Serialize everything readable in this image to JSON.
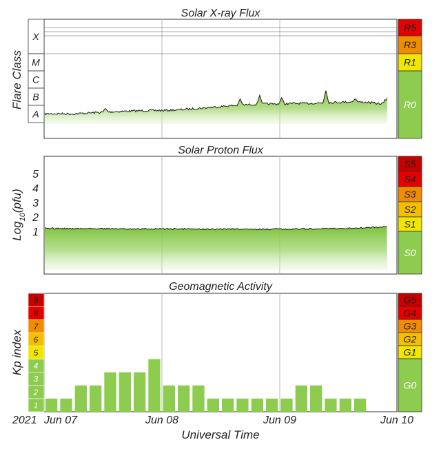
{
  "colors": {
    "green": "#8dcc4e",
    "green_light": "#d6efbe",
    "yellow": "#f2e600",
    "gold": "#f5bf00",
    "orange": "#f08c00",
    "red_orange": "#e64a00",
    "red": "#e60000",
    "dark_red": "#c80000",
    "grid": "#b8b8b8",
    "line": "#1a1a1a"
  },
  "chart_data": [
    {
      "type": "area",
      "title": "Solar X-ray Flux",
      "ylabel": "Flare Class",
      "y_scale": "log",
      "y_range_wm2": [
        1e-09,
        0.01
      ],
      "class_labels": [
        "X",
        "M",
        "C",
        "B",
        "A"
      ],
      "x_range": [
        "2021-06-07",
        "2021-06-10"
      ],
      "series": [
        {
          "points": [
            [
              "2021-06-07 00:00",
              3.2e-08
            ],
            [
              "2021-06-07 03:00",
              3.3e-08
            ],
            [
              "2021-06-07 06:00",
              3.2e-08
            ],
            [
              "2021-06-07 09:00",
              3.6e-08
            ],
            [
              "2021-06-07 12:00",
              4e-08
            ],
            [
              "2021-06-07 15:00",
              4.4e-08
            ],
            [
              "2021-06-07 18:00",
              4.7e-08
            ],
            [
              "2021-06-07 21:00",
              5e-08
            ],
            [
              "2021-06-08 00:00",
              5e-08
            ],
            [
              "2021-06-08 03:00",
              5.4e-08
            ],
            [
              "2021-06-08 06:00",
              6.2e-08
            ],
            [
              "2021-06-08 09:00",
              7.2e-08
            ],
            [
              "2021-06-08 12:00",
              8.5e-08
            ],
            [
              "2021-06-08 15:00",
              1e-07
            ],
            [
              "2021-06-08 18:00",
              1.1e-07
            ],
            [
              "2021-06-08 21:00",
              1.2e-07
            ],
            [
              "2021-06-09 00:00",
              1.2e-07
            ],
            [
              "2021-06-09 03:00",
              1.3e-07
            ],
            [
              "2021-06-09 06:00",
              1.3e-07
            ],
            [
              "2021-06-09 09:00",
              1.4e-07
            ],
            [
              "2021-06-09 12:00",
              1.5e-07
            ],
            [
              "2021-06-09 15:00",
              1.6e-07
            ],
            [
              "2021-06-09 18:00",
              1.5e-07
            ],
            [
              "2021-06-09 21:00",
              1.2e-07
            ],
            [
              "2021-06-09 22:00",
              2.8e-07
            ]
          ],
          "peaks": [
            [
              "2021-06-07 12:30",
              7e-08
            ],
            [
              "2021-06-08 16:00",
              2.4e-07
            ],
            [
              "2021-06-08 20:00",
              4e-07
            ],
            [
              "2021-06-09 00:30",
              3e-07
            ],
            [
              "2021-06-09 09:30",
              7.5e-07
            ],
            [
              "2021-06-09 15:30",
              2.5e-07
            ]
          ]
        }
      ],
      "scale_boxes": [
        {
          "label": "R5",
          "color": "red"
        },
        {
          "label": "R3",
          "color": "orange"
        },
        {
          "label": "R1",
          "color": "yellow"
        },
        {
          "label": "R0",
          "color": "green"
        }
      ]
    },
    {
      "type": "area",
      "title": "Solar Proton Flux",
      "ylabel": "Log10(pfu)",
      "ylabel_parts": {
        "base": "Log",
        "sub": "10",
        "rest": "(pfu)"
      },
      "y_range_log_pfu": [
        -2,
        6
      ],
      "y_ticks": [
        "1",
        "2",
        "3",
        "4",
        "5"
      ],
      "x_range": [
        "2021-06-07",
        "2021-06-10"
      ],
      "series": [
        {
          "points": [
            [
              "2021-06-07 00:00",
              -0.35
            ],
            [
              "2021-06-07 12:00",
              -0.37
            ],
            [
              "2021-06-08 00:00",
              -0.38
            ],
            [
              "2021-06-08 12:00",
              -0.4
            ],
            [
              "2021-06-09 00:00",
              -0.39
            ],
            [
              "2021-06-09 12:00",
              -0.36
            ],
            [
              "2021-06-09 18:00",
              -0.3
            ],
            [
              "2021-06-09 22:00",
              -0.25
            ]
          ]
        }
      ],
      "scale_boxes": [
        {
          "label": "S5",
          "color": "dark_red"
        },
        {
          "label": "S4",
          "color": "red"
        },
        {
          "label": "S3",
          "color": "orange"
        },
        {
          "label": "S2",
          "color": "gold"
        },
        {
          "label": "S1",
          "color": "yellow"
        },
        {
          "label": "S0",
          "color": "green"
        }
      ]
    },
    {
      "type": "bar",
      "title": "Geomagnetic Activity",
      "ylabel": "Kp index",
      "y_range": [
        0,
        9
      ],
      "kp_levels": [
        "1",
        "2",
        "3",
        "4",
        "5",
        "6",
        "7",
        "8",
        "9"
      ],
      "x_range": [
        "2021-06-07",
        "2021-06-10"
      ],
      "values": [
        1,
        1,
        2,
        2,
        3,
        3,
        3,
        4,
        2,
        2,
        2,
        1,
        1,
        1,
        1,
        1,
        1,
        2,
        2,
        1,
        1,
        1
      ],
      "scale_boxes": [
        {
          "label": "G5",
          "color": "dark_red"
        },
        {
          "label": "G4",
          "color": "red"
        },
        {
          "label": "G3",
          "color": "orange"
        },
        {
          "label": "G2",
          "color": "gold"
        },
        {
          "label": "G1",
          "color": "yellow"
        },
        {
          "label": "G0",
          "color": "green"
        }
      ]
    }
  ],
  "x_axis": {
    "year_label": "2021",
    "tick_labels": [
      "Jun 07",
      "Jun 08",
      "Jun 09",
      "Jun 10"
    ],
    "title": "Universal Time"
  }
}
